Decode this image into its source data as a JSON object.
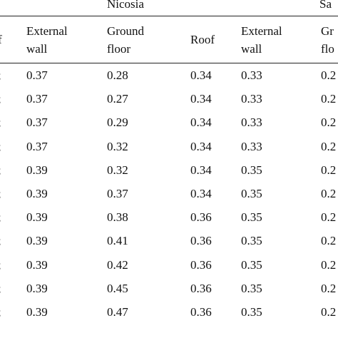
{
  "table": {
    "group_headers": [
      "Nicosia",
      "Sa"
    ],
    "column_headers": [
      [
        "f"
      ],
      [
        "External",
        "wall"
      ],
      [
        "Ground",
        "floor"
      ],
      [
        "Roof"
      ],
      [
        "External",
        "wall"
      ],
      [
        "Gr",
        "flo"
      ]
    ],
    "rows": [
      [
        ";",
        "0.37",
        "0.28",
        "0.34",
        "0.33",
        "0.2"
      ],
      [
        ";",
        "0.37",
        "0.27",
        "0.34",
        "0.33",
        "0.2"
      ],
      [
        ";",
        "0.37",
        "0.29",
        "0.34",
        "0.33",
        "0.2"
      ],
      [
        ";",
        "0.37",
        "0.32",
        "0.34",
        "0.33",
        "0.2"
      ],
      [
        ";",
        "0.39",
        "0.32",
        "0.34",
        "0.35",
        "0.2"
      ],
      [
        ";",
        "0.39",
        "0.37",
        "0.34",
        "0.35",
        "0.2"
      ],
      [
        ";",
        "0.39",
        "0.38",
        "0.36",
        "0.35",
        "0.2"
      ],
      [
        ";",
        "0.39",
        "0.41",
        "0.36",
        "0.35",
        "0.2"
      ],
      [
        ";",
        "0.39",
        "0.42",
        "0.36",
        "0.35",
        "0.2"
      ],
      [
        ";",
        "0.39",
        "0.45",
        "0.36",
        "0.35",
        "0.2"
      ],
      [
        ";",
        "0.39",
        "0.47",
        "0.36",
        "0.35",
        "0.2"
      ]
    ]
  }
}
